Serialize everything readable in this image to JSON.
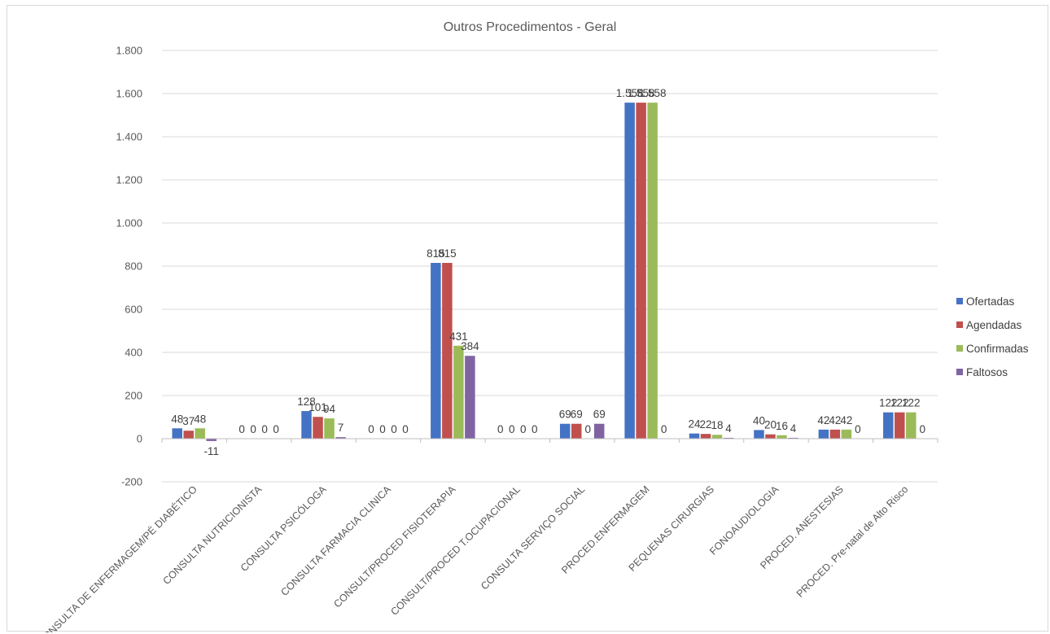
{
  "chart_data": {
    "type": "bar",
    "title": "Outros Procedimentos  - Geral",
    "categories": [
      "CONSULTA DE ENFERMAGEM/PÉ DIABÉTICO",
      "CONSULTA NUTRICIONISTA",
      "CONSULTA PSICÓLOGA",
      "CONSULTA FARMACIA CLINICA",
      "CONSULT/PROCED FISIOTERAPIA",
      "CONSULT/PROCED T.OCUPACIONAL",
      "CONSULTA SERVIÇO SOCIAL",
      "PROCED.ENFERMAGEM",
      "PEQUENAS CIRURGIAS",
      "FONOAUDIOLOGIA",
      "PROCED. ANESTESIAS",
      "PROCED. Pre-natal de Alto Risco"
    ],
    "series": [
      {
        "name": "Ofertadas",
        "color": "#4472C4",
        "values": [
          48,
          0,
          128,
          0,
          815,
          0,
          69,
          1558,
          24,
          40,
          42,
          122
        ]
      },
      {
        "name": "Agendadas",
        "color": "#C0504D",
        "values": [
          37,
          0,
          101,
          0,
          815,
          0,
          69,
          1558,
          22,
          20,
          42,
          122
        ]
      },
      {
        "name": "Confirmadas",
        "color": "#9BBB59",
        "values": [
          48,
          0,
          94,
          0,
          431,
          0,
          0,
          1558,
          18,
          16,
          42,
          122
        ]
      },
      {
        "name": "Faltosos",
        "color": "#8064A2",
        "values": [
          -11,
          0,
          7,
          0,
          384,
          0,
          69,
          0,
          4,
          4,
          0,
          0
        ]
      }
    ],
    "data_labels": [
      [
        "48",
        "0",
        "128",
        "0",
        "815",
        "0",
        "69",
        "1.558",
        "24",
        "40",
        "42",
        "122"
      ],
      [
        "37",
        "0",
        "101",
        "0",
        "815",
        "0",
        "69",
        "1.558",
        "22",
        "20",
        "42",
        "122"
      ],
      [
        "48",
        "0",
        "94",
        "0",
        "431",
        "0",
        "0",
        "1.558",
        "18",
        "16",
        "42",
        "122"
      ],
      [
        "-11",
        "0",
        "7",
        "0",
        "384",
        "0",
        "69",
        "0",
        "4",
        "4",
        "0",
        "0"
      ]
    ],
    "yticks": [
      -200,
      0,
      200,
      400,
      600,
      800,
      1000,
      1200,
      1400,
      1600,
      1800
    ],
    "ytick_labels": [
      "-200",
      "0",
      "200",
      "400",
      "600",
      "800",
      "1.000",
      "1.200",
      "1.400",
      "1.600",
      "1.800"
    ],
    "ylim": [
      -200,
      1800
    ],
    "grid": true,
    "legend_position": "right",
    "xlabel": "",
    "ylabel": ""
  }
}
